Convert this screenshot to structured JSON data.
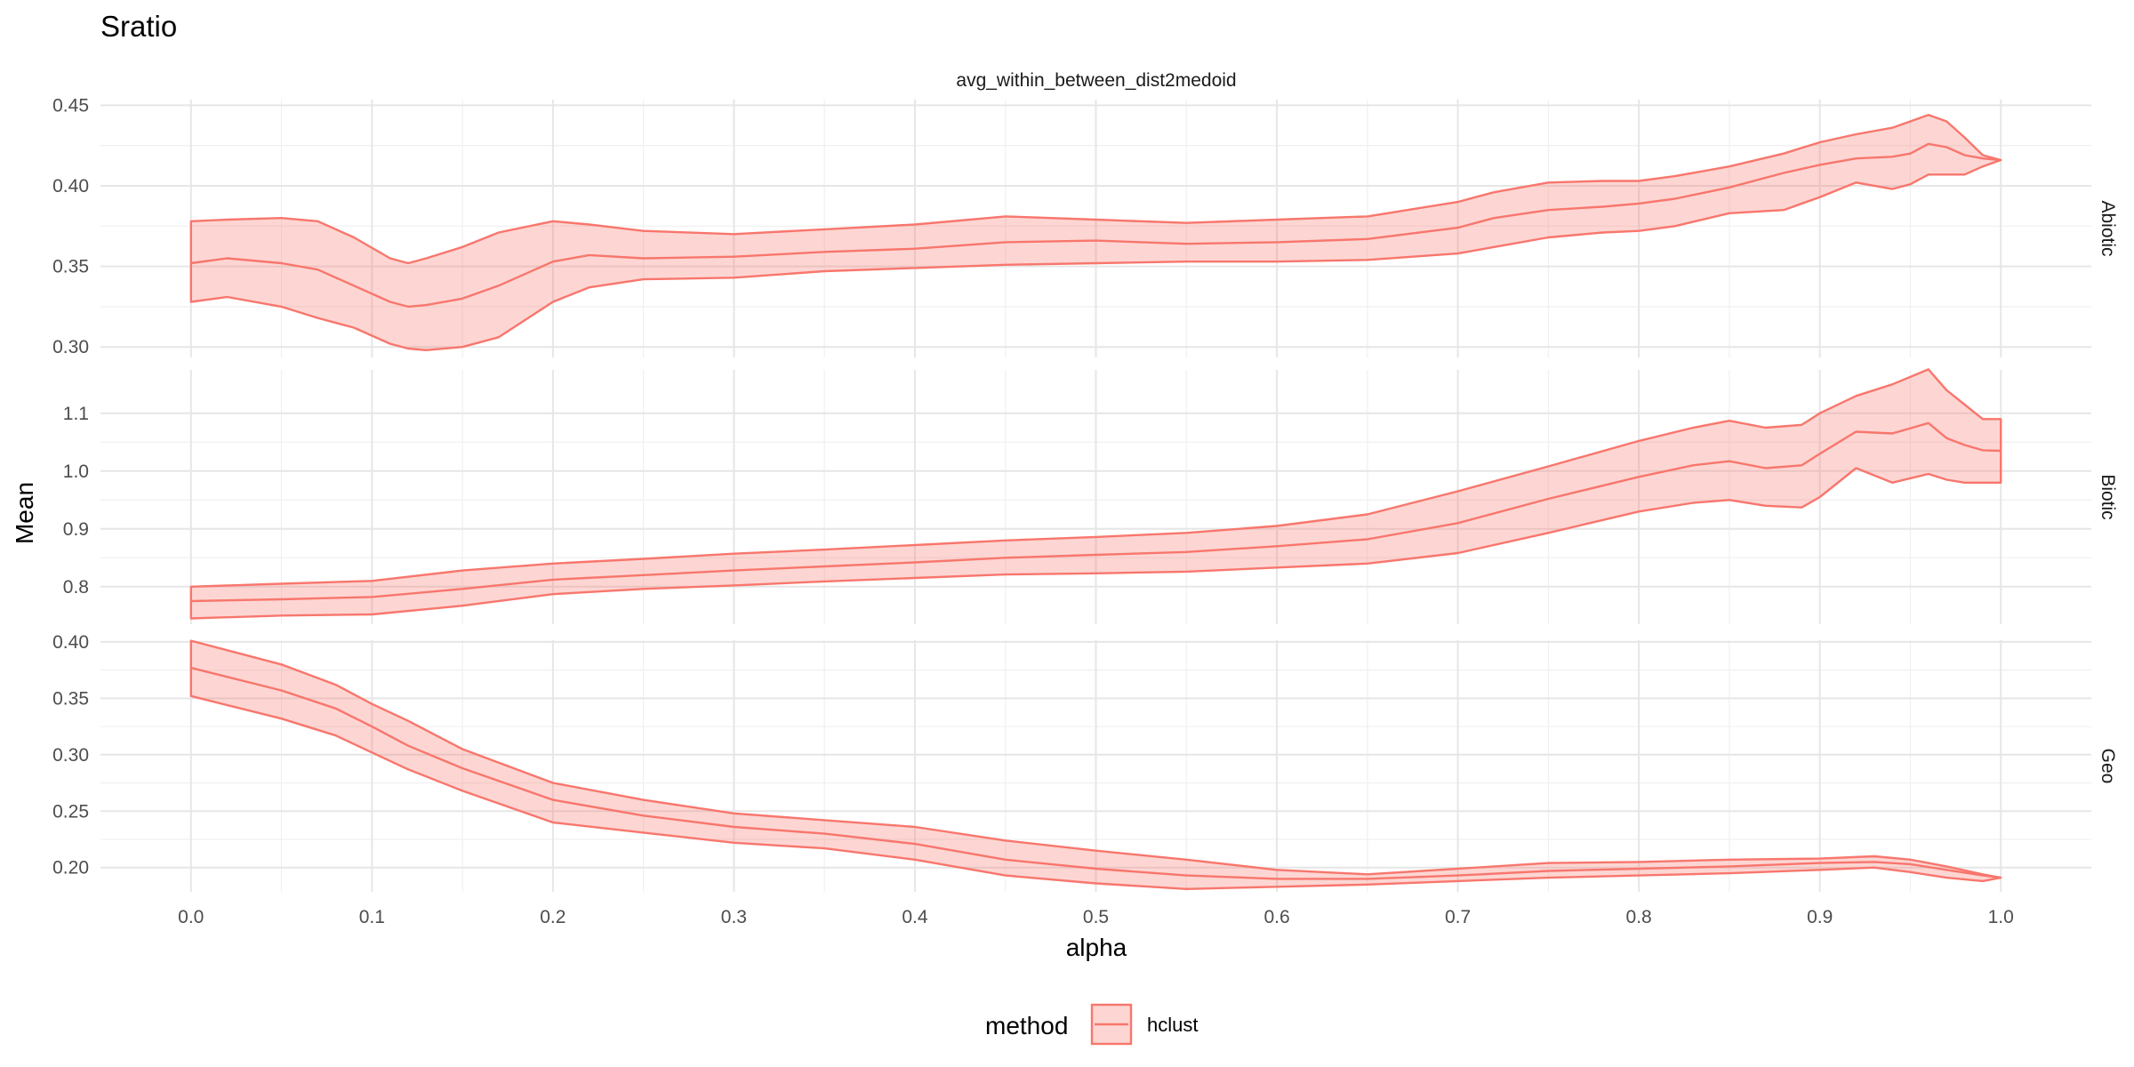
{
  "chart_data": {
    "type": "area",
    "title": "Sratio",
    "strip_top": "avg_within_between_dist2medoid",
    "xlabel": "alpha",
    "ylabel": "Mean",
    "x_ticks": [
      "0.0",
      "0.1",
      "0.2",
      "0.3",
      "0.4",
      "0.5",
      "0.6",
      "0.7",
      "0.8",
      "0.9",
      "1.0"
    ],
    "xlim": [
      -0.05,
      1.05
    ],
    "grid": true,
    "legend": {
      "title": "method",
      "position": "bottom",
      "entries": [
        "hclust"
      ],
      "color": "#f8766d"
    },
    "panels": [
      {
        "name": "Abiotic",
        "ylim": [
          0.2935,
          0.4535
        ],
        "y_ticks": [
          0.3,
          0.35,
          0.4,
          0.45
        ],
        "y_tick_labels": [
          "0.30",
          "0.35",
          "0.40",
          "0.45"
        ],
        "x": [
          0.0,
          0.02,
          0.05,
          0.07,
          0.09,
          0.11,
          0.12,
          0.13,
          0.15,
          0.17,
          0.2,
          0.22,
          0.25,
          0.3,
          0.35,
          0.4,
          0.45,
          0.5,
          0.55,
          0.6,
          0.65,
          0.7,
          0.72,
          0.75,
          0.78,
          0.8,
          0.82,
          0.85,
          0.88,
          0.9,
          0.92,
          0.94,
          0.95,
          0.96,
          0.97,
          0.98,
          0.99,
          1.0
        ],
        "upper": [
          0.378,
          0.379,
          0.38,
          0.378,
          0.368,
          0.355,
          0.352,
          0.355,
          0.362,
          0.371,
          0.378,
          0.376,
          0.372,
          0.37,
          0.373,
          0.376,
          0.381,
          0.379,
          0.377,
          0.379,
          0.381,
          0.39,
          0.396,
          0.402,
          0.403,
          0.403,
          0.406,
          0.412,
          0.42,
          0.427,
          0.432,
          0.436,
          0.44,
          0.444,
          0.44,
          0.43,
          0.419,
          0.416
        ],
        "mean": [
          0.352,
          0.355,
          0.352,
          0.348,
          0.338,
          0.328,
          0.325,
          0.326,
          0.33,
          0.338,
          0.353,
          0.357,
          0.355,
          0.356,
          0.359,
          0.361,
          0.365,
          0.366,
          0.364,
          0.365,
          0.367,
          0.374,
          0.38,
          0.385,
          0.387,
          0.389,
          0.392,
          0.399,
          0.408,
          0.413,
          0.417,
          0.418,
          0.42,
          0.426,
          0.424,
          0.419,
          0.417,
          0.416
        ],
        "lower": [
          0.328,
          0.331,
          0.325,
          0.318,
          0.312,
          0.302,
          0.299,
          0.298,
          0.3,
          0.306,
          0.328,
          0.337,
          0.342,
          0.343,
          0.347,
          0.349,
          0.351,
          0.352,
          0.353,
          0.353,
          0.354,
          0.358,
          0.362,
          0.368,
          0.371,
          0.372,
          0.375,
          0.383,
          0.385,
          0.393,
          0.402,
          0.398,
          0.401,
          0.407,
          0.407,
          0.407,
          0.412,
          0.416
        ]
      },
      {
        "name": "Biotic",
        "ylim": [
          0.735,
          1.175
        ],
        "y_ticks": [
          0.8,
          0.9,
          1.0,
          1.1
        ],
        "y_tick_labels": [
          "0.8",
          "0.9",
          "1.0",
          "1.1"
        ],
        "x": [
          0.0,
          0.05,
          0.1,
          0.15,
          0.2,
          0.25,
          0.3,
          0.35,
          0.4,
          0.45,
          0.5,
          0.55,
          0.6,
          0.65,
          0.7,
          0.75,
          0.8,
          0.83,
          0.85,
          0.87,
          0.89,
          0.9,
          0.92,
          0.94,
          0.96,
          0.97,
          0.98,
          0.99,
          1.0
        ],
        "upper": [
          0.8,
          0.805,
          0.81,
          0.828,
          0.84,
          0.848,
          0.857,
          0.864,
          0.872,
          0.88,
          0.886,
          0.893,
          0.905,
          0.925,
          0.965,
          1.008,
          1.052,
          1.075,
          1.087,
          1.075,
          1.08,
          1.1,
          1.13,
          1.15,
          1.176,
          1.14,
          1.115,
          1.09,
          1.09
        ],
        "mean": [
          0.775,
          0.778,
          0.782,
          0.796,
          0.812,
          0.82,
          0.828,
          0.835,
          0.842,
          0.85,
          0.855,
          0.86,
          0.87,
          0.882,
          0.91,
          0.952,
          0.99,
          1.01,
          1.017,
          1.005,
          1.01,
          1.03,
          1.068,
          1.065,
          1.083,
          1.057,
          1.045,
          1.036,
          1.035
        ],
        "lower": [
          0.745,
          0.75,
          0.752,
          0.767,
          0.787,
          0.796,
          0.802,
          0.809,
          0.815,
          0.821,
          0.823,
          0.826,
          0.833,
          0.84,
          0.858,
          0.893,
          0.93,
          0.945,
          0.95,
          0.94,
          0.937,
          0.955,
          1.005,
          0.98,
          0.995,
          0.985,
          0.98,
          0.98,
          0.98
        ]
      },
      {
        "name": "Geo",
        "ylim": [
          0.1785,
          0.4015
        ],
        "y_ticks": [
          0.2,
          0.25,
          0.3,
          0.35,
          0.4
        ],
        "y_tick_labels": [
          "0.20",
          "0.25",
          "0.30",
          "0.35",
          "0.40"
        ],
        "x": [
          0.0,
          0.05,
          0.08,
          0.1,
          0.12,
          0.15,
          0.2,
          0.25,
          0.3,
          0.35,
          0.4,
          0.45,
          0.5,
          0.55,
          0.6,
          0.65,
          0.7,
          0.75,
          0.8,
          0.85,
          0.9,
          0.93,
          0.95,
          0.97,
          0.99,
          1.0
        ],
        "upper": [
          0.401,
          0.38,
          0.362,
          0.345,
          0.33,
          0.305,
          0.275,
          0.26,
          0.248,
          0.242,
          0.236,
          0.224,
          0.215,
          0.207,
          0.198,
          0.194,
          0.199,
          0.204,
          0.205,
          0.207,
          0.208,
          0.21,
          0.207,
          0.201,
          0.194,
          0.191
        ],
        "mean": [
          0.377,
          0.357,
          0.341,
          0.325,
          0.308,
          0.288,
          0.26,
          0.246,
          0.236,
          0.23,
          0.221,
          0.207,
          0.199,
          0.193,
          0.19,
          0.19,
          0.193,
          0.197,
          0.199,
          0.201,
          0.204,
          0.205,
          0.203,
          0.198,
          0.193,
          0.191
        ],
        "lower": [
          0.352,
          0.332,
          0.317,
          0.302,
          0.287,
          0.268,
          0.24,
          0.231,
          0.222,
          0.217,
          0.207,
          0.193,
          0.186,
          0.181,
          0.183,
          0.185,
          0.188,
          0.191,
          0.193,
          0.195,
          0.198,
          0.2,
          0.196,
          0.191,
          0.188,
          0.191
        ]
      }
    ]
  }
}
